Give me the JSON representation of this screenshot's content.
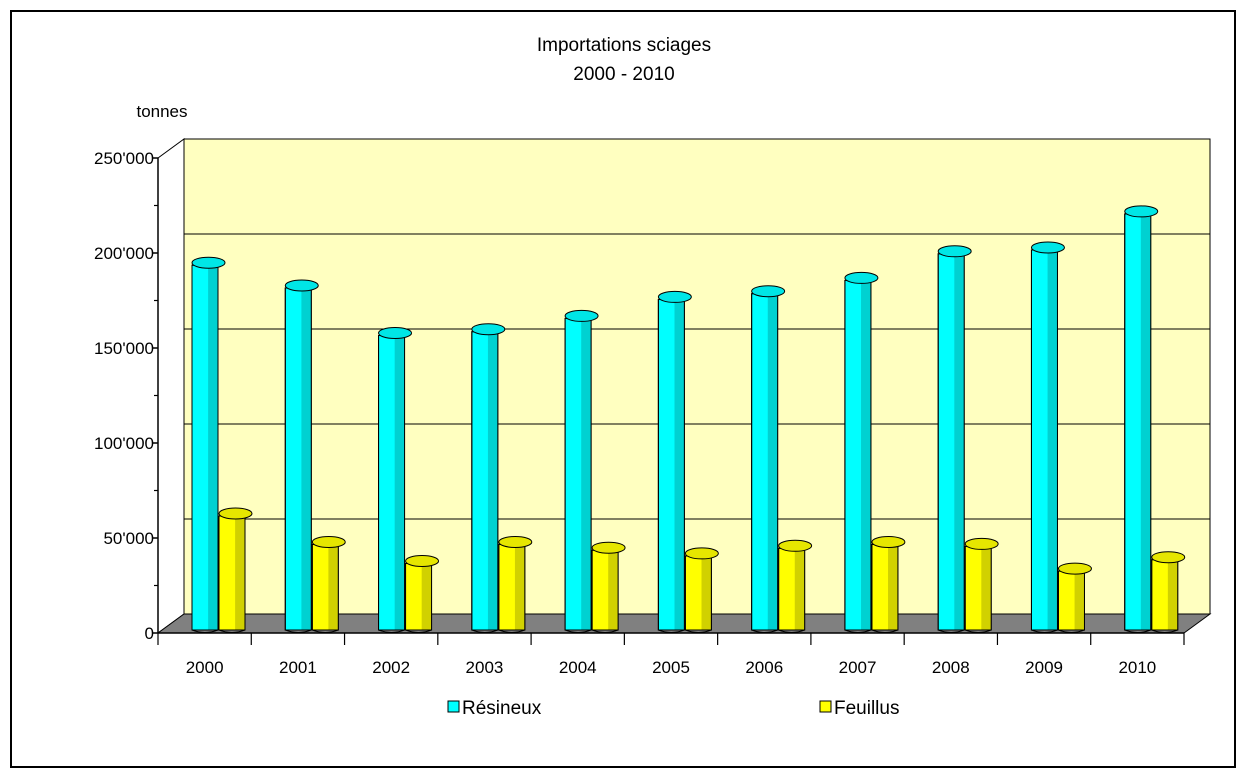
{
  "chart_data": {
    "type": "bar",
    "title": "Importations sciages",
    "subtitle": "2000 - 2010",
    "ylabel": "tonnes",
    "xlabel": "",
    "ylim": [
      0,
      250000
    ],
    "ytick_labels": [
      "0",
      "50'000",
      "100'000",
      "150'000",
      "200'000",
      "250'000"
    ],
    "ytick_values": [
      0,
      50000,
      100000,
      150000,
      200000,
      250000
    ],
    "categories": [
      "2000",
      "2001",
      "2002",
      "2003",
      "2004",
      "2005",
      "2006",
      "2007",
      "2008",
      "2009",
      "2010"
    ],
    "series": [
      {
        "name": "Résineux",
        "values": [
          192000,
          180000,
          155000,
          157000,
          164000,
          174000,
          177000,
          184000,
          198000,
          200000,
          219000
        ],
        "color": "#00ffff"
      },
      {
        "name": "Feuillus",
        "values": [
          60000,
          45000,
          35000,
          45000,
          42000,
          39000,
          43000,
          45000,
          44000,
          31000,
          37000
        ],
        "color": "#ffff00"
      }
    ],
    "grid": true,
    "legend_position": "bottom",
    "plot_background": "#ffffc0",
    "floor_color": "#808080"
  }
}
